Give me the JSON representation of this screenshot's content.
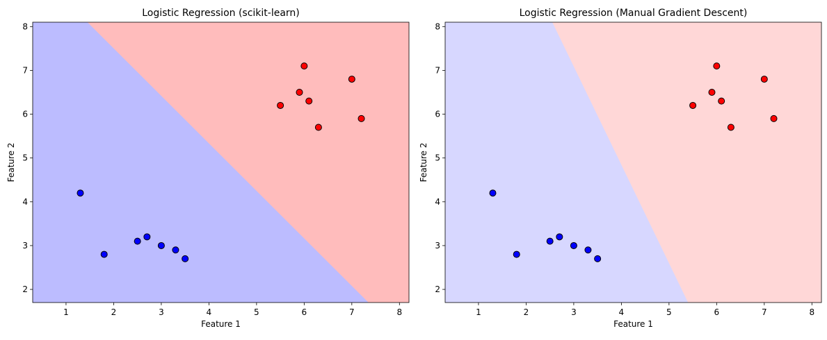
{
  "chart_data": [
    {
      "type": "scatter",
      "title": "Logistic Regression (scikit-learn)",
      "xlabel": "Feature 1",
      "ylabel": "Feature 2",
      "xlim": [
        0.3,
        8.2
      ],
      "ylim": [
        1.7,
        8.1
      ],
      "xticks": [
        1,
        2,
        3,
        4,
        5,
        6,
        7,
        8
      ],
      "yticks": [
        2,
        3,
        4,
        5,
        6,
        7,
        8
      ],
      "grid": false,
      "background_regions": {
        "class0_color": "#bcbcff",
        "class1_color": "#ffbcbc",
        "boundary_line": [
          [
            1.45,
            8.1
          ],
          [
            7.35,
            1.7
          ]
        ]
      },
      "series": [
        {
          "color": "#0000ff",
          "points": [
            [
              1.3,
              4.2
            ],
            [
              1.8,
              2.8
            ],
            [
              2.5,
              3.1
            ],
            [
              2.7,
              3.2
            ],
            [
              3.0,
              3.0
            ],
            [
              3.3,
              2.9
            ],
            [
              3.5,
              2.7
            ]
          ]
        },
        {
          "color": "#ff0000",
          "points": [
            [
              5.5,
              6.2
            ],
            [
              5.9,
              6.5
            ],
            [
              6.0,
              7.1
            ],
            [
              6.1,
              6.3
            ],
            [
              6.3,
              5.7
            ],
            [
              7.0,
              6.8
            ],
            [
              7.2,
              5.9
            ]
          ]
        }
      ]
    },
    {
      "type": "scatter",
      "title": "Logistic Regression (Manual Gradient Descent)",
      "xlabel": "Feature 1",
      "ylabel": "Feature 2",
      "xlim": [
        0.3,
        8.2
      ],
      "ylim": [
        1.7,
        8.1
      ],
      "xticks": [
        1,
        2,
        3,
        4,
        5,
        6,
        7,
        8
      ],
      "yticks": [
        2,
        3,
        4,
        5,
        6,
        7,
        8
      ],
      "grid": false,
      "background_regions": {
        "class0_color": "#d7d7ff",
        "class1_color": "#ffd7d7",
        "boundary_line": [
          [
            2.55,
            8.1
          ],
          [
            5.4,
            1.7
          ]
        ]
      },
      "series": [
        {
          "color": "#0000ff",
          "points": [
            [
              1.3,
              4.2
            ],
            [
              1.8,
              2.8
            ],
            [
              2.5,
              3.1
            ],
            [
              2.7,
              3.2
            ],
            [
              3.0,
              3.0
            ],
            [
              3.3,
              2.9
            ],
            [
              3.5,
              2.7
            ]
          ]
        },
        {
          "color": "#ff0000",
          "points": [
            [
              5.5,
              6.2
            ],
            [
              5.9,
              6.5
            ],
            [
              6.0,
              7.1
            ],
            [
              6.1,
              6.3
            ],
            [
              6.3,
              5.7
            ],
            [
              7.0,
              6.8
            ],
            [
              7.2,
              5.9
            ]
          ]
        }
      ]
    }
  ]
}
